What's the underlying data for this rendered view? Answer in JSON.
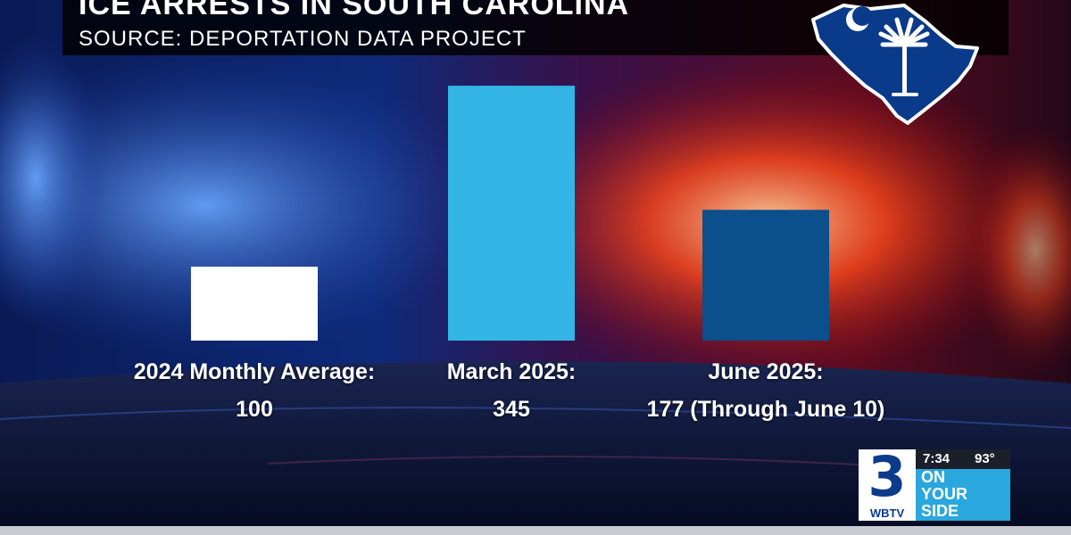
{
  "header": {
    "title": "ICE ARRESTS IN SOUTH CAROLINA",
    "subtitle": "SOURCE: DEPORTATION DATA PROJECT"
  },
  "chart_data": {
    "type": "bar",
    "title": "ICE ARRESTS IN SOUTH CAROLINA",
    "subtitle": "SOURCE: DEPORTATION DATA PROJECT",
    "categories": [
      {
        "line1": "2024 Monthly Average:",
        "line2": "100"
      },
      {
        "line1": "March 2025:",
        "line2": "345"
      },
      {
        "line1": "June 2025:",
        "line2": "177 (Through June 10)"
      }
    ],
    "values": [
      100,
      345,
      177
    ],
    "bar_colors": [
      "#ffffff",
      "#33b5e5",
      "#0b4f8c"
    ],
    "ylim": [
      0,
      350
    ],
    "grid": false,
    "legend": "none"
  },
  "branding": {
    "channel_number": "3",
    "call_sign": "WBTV",
    "time": "7:34",
    "temperature": "93°",
    "slogan": [
      "ON",
      "YOUR",
      "SIDE"
    ],
    "state_map_icons": [
      "crescent-icon",
      "palmetto-icon"
    ]
  },
  "colors": {
    "map_blue": "#0a3a8a",
    "logo_blue": "#2aa7dd"
  }
}
